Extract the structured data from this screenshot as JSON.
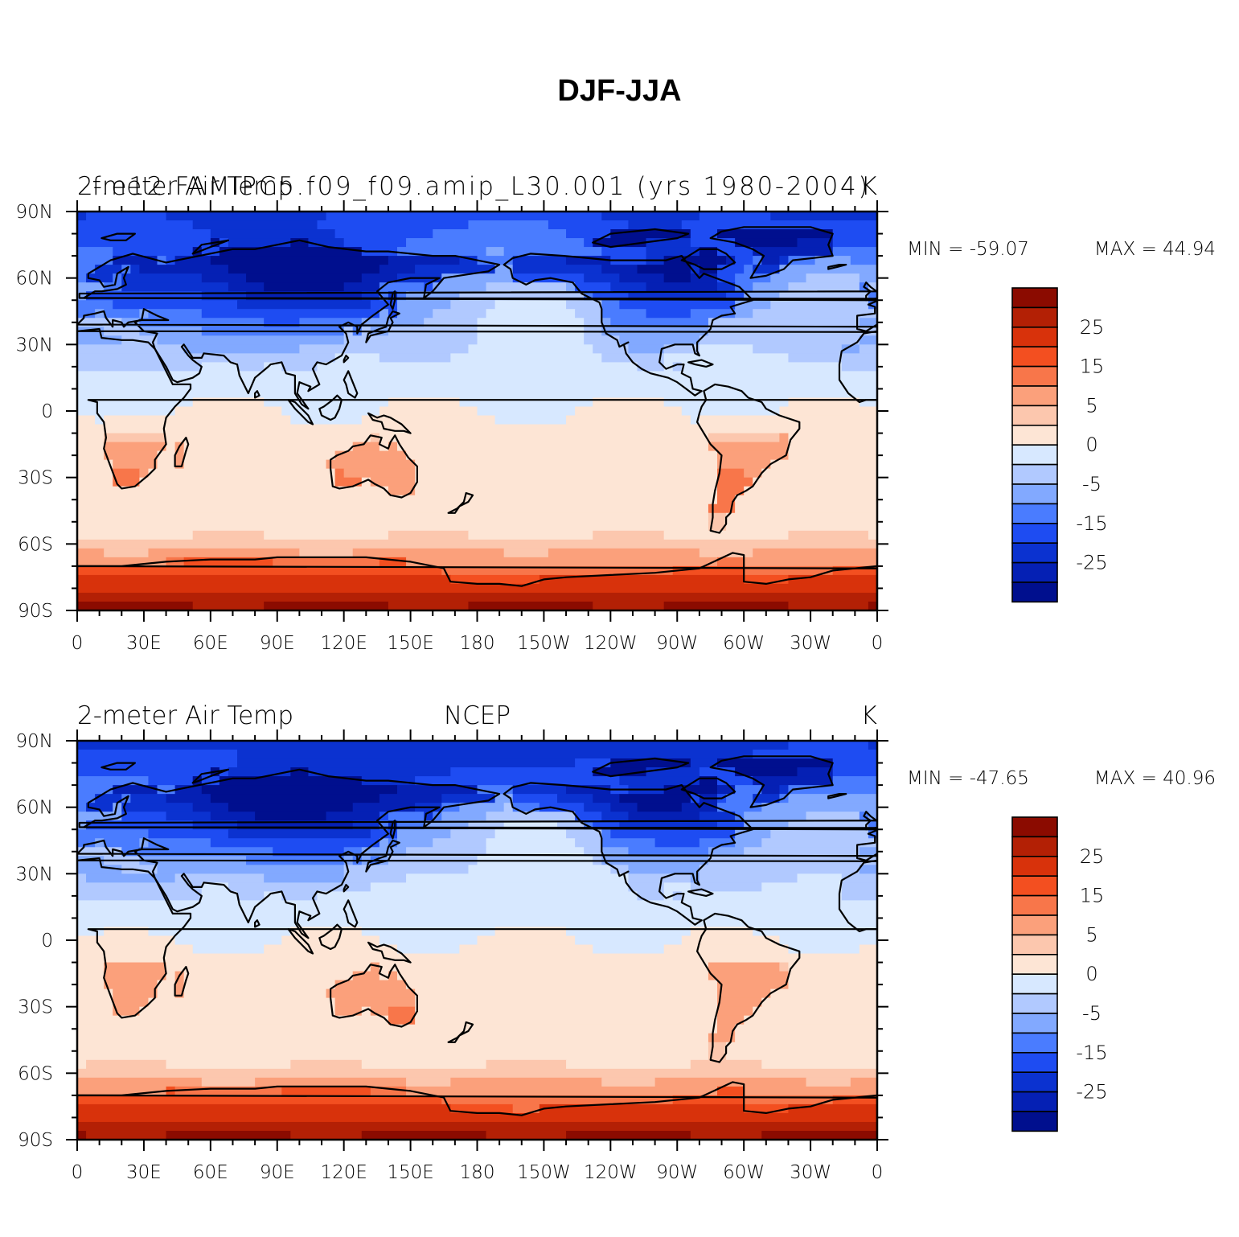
{
  "title": "DJF-JJA",
  "colors": {
    "levels": [
      "#000f8e",
      "#0520b4",
      "#0b32d0",
      "#1e4cf2",
      "#4a7cff",
      "#82a9ff",
      "#b1c9ff",
      "#d7e8ff",
      "#fde5d5",
      "#fcc7ae",
      "#fba07b",
      "#f8764a",
      "#f34f20",
      "#d8320b",
      "#b32005",
      "#8b0b00"
    ],
    "coastline": "#000000"
  },
  "chart_data": [
    {
      "type": "heatmap",
      "map_type": "global lat-lon filled contour",
      "left_title": "2-meter Air Temp",
      "center_title": "f.e12.FAMIPC5.f09_f09.amip_L30.001 (yrs 1980-2004)",
      "units": "K",
      "min_label": "MIN = -59.07",
      "max_label": "MAX =  44.94",
      "min": -59.07,
      "max": 44.94,
      "x_ticks": [
        "0",
        "30E",
        "60E",
        "90E",
        "120E",
        "150E",
        "180",
        "150W",
        "120W",
        "90W",
        "60W",
        "30W",
        "0"
      ],
      "y_ticks": [
        "90N",
        "60N",
        "30N",
        "0",
        "30S",
        "60S",
        "90S"
      ],
      "xlim": [
        0,
        360
      ],
      "ylim": [
        -90,
        90
      ],
      "colorbar_labels": [
        "25",
        "15",
        "5",
        "0",
        "-5",
        "-15",
        "-25"
      ]
    },
    {
      "type": "heatmap",
      "map_type": "global lat-lon filled contour",
      "left_title": "2-meter Air Temp",
      "center_title": "NCEP",
      "units": "K",
      "min_label": "MIN = -47.65",
      "max_label": "MAX =  40.96",
      "min": -47.65,
      "max": 40.96,
      "x_ticks": [
        "0",
        "30E",
        "60E",
        "90E",
        "120E",
        "150E",
        "180",
        "150W",
        "120W",
        "90W",
        "60W",
        "30W",
        "0"
      ],
      "y_ticks": [
        "90N",
        "60N",
        "30N",
        "0",
        "30S",
        "60S",
        "90S"
      ],
      "xlim": [
        0,
        360
      ],
      "ylim": [
        -90,
        90
      ],
      "colorbar_labels": [
        "25",
        "15",
        "5",
        "0",
        "-5",
        "-15",
        "-25"
      ]
    }
  ]
}
